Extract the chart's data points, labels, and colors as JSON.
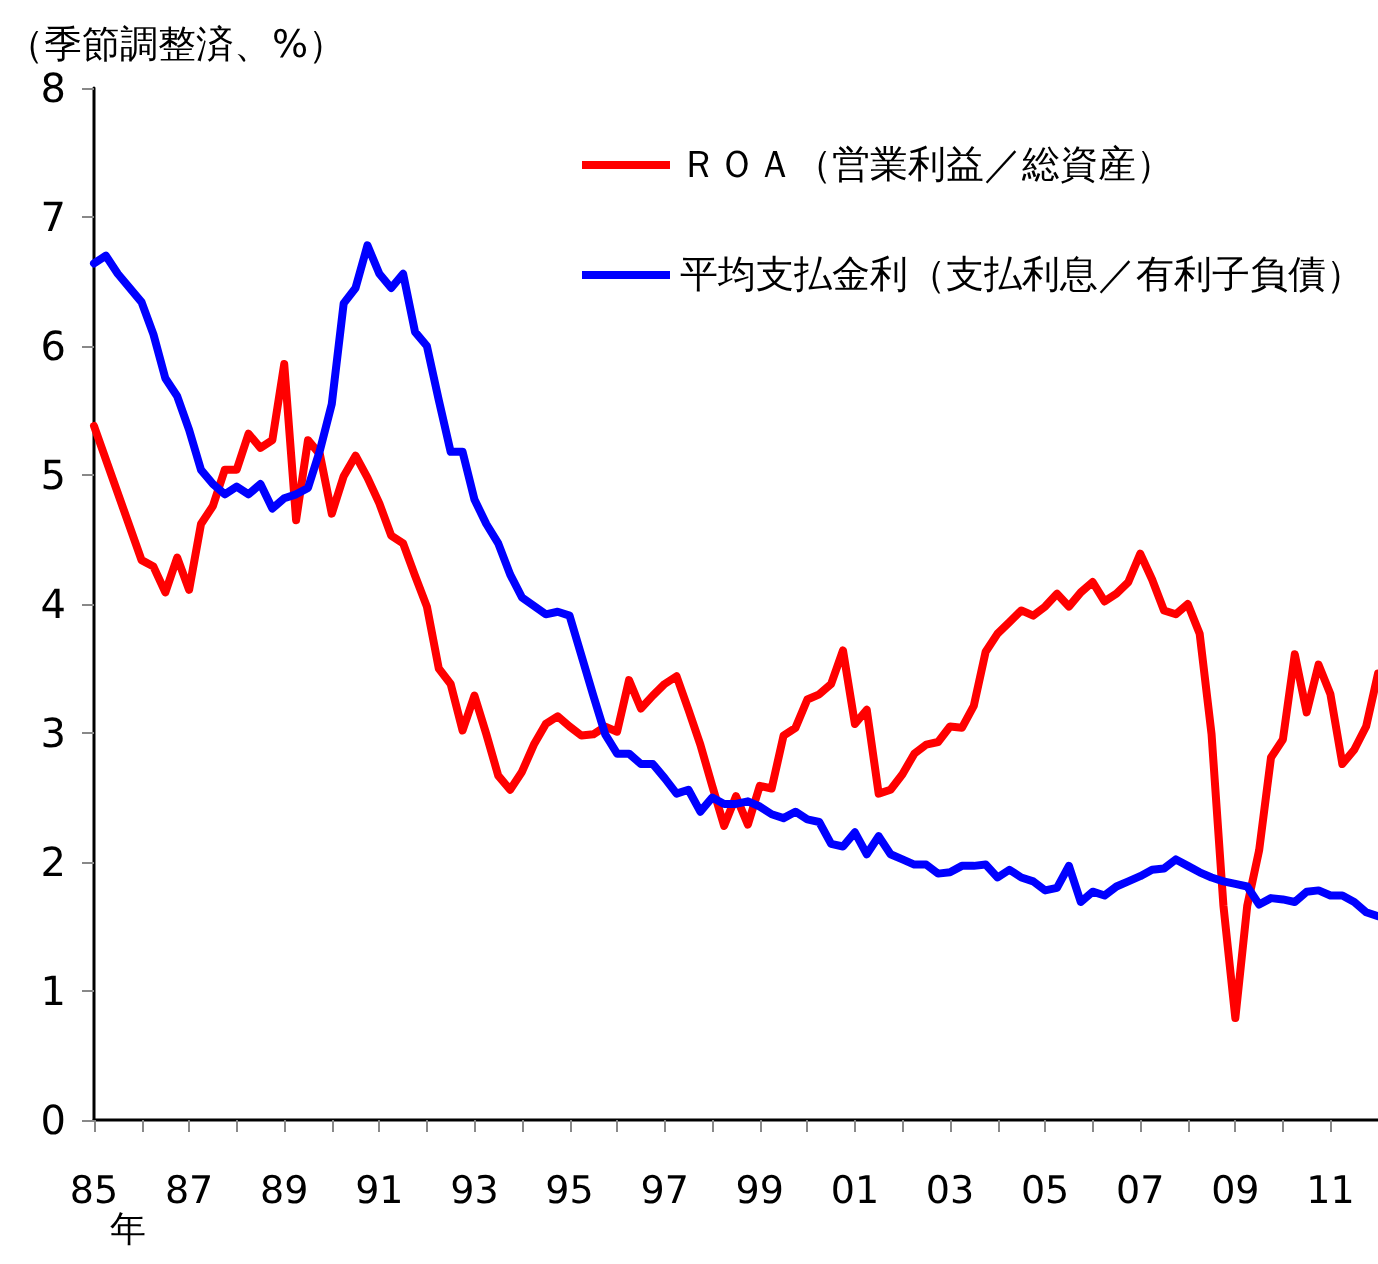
{
  "chart_data": {
    "type": "line",
    "ylabel": "（季節調整済、%）",
    "xlabel": "年",
    "xlim": [
      1985,
      2012
    ],
    "ylim": [
      0,
      8
    ],
    "yticks": [
      0,
      1,
      2,
      3,
      4,
      5,
      6,
      7,
      8
    ],
    "xticks": [
      {
        "value": 1985,
        "label": "85"
      },
      {
        "value": 1986,
        "label": null
      },
      {
        "value": 1987,
        "label": "87"
      },
      {
        "value": 1988,
        "label": null
      },
      {
        "value": 1989,
        "label": "89"
      },
      {
        "value": 1990,
        "label": null
      },
      {
        "value": 1991,
        "label": "91"
      },
      {
        "value": 1992,
        "label": null
      },
      {
        "value": 1993,
        "label": "93"
      },
      {
        "value": 1994,
        "label": null
      },
      {
        "value": 1995,
        "label": "95"
      },
      {
        "value": 1996,
        "label": null
      },
      {
        "value": 1997,
        "label": "97"
      },
      {
        "value": 1998,
        "label": null
      },
      {
        "value": 1999,
        "label": "99"
      },
      {
        "value": 2000,
        "label": null
      },
      {
        "value": 2001,
        "label": "01"
      },
      {
        "value": 2002,
        "label": null
      },
      {
        "value": 2003,
        "label": "03"
      },
      {
        "value": 2004,
        "label": null
      },
      {
        "value": 2005,
        "label": "05"
      },
      {
        "value": 2006,
        "label": null
      },
      {
        "value": 2007,
        "label": "07"
      },
      {
        "value": 2008,
        "label": null
      },
      {
        "value": 2009,
        "label": "09"
      },
      {
        "value": 2010,
        "label": null
      },
      {
        "value": 2011,
        "label": "11"
      }
    ],
    "grid": false,
    "legend": "top right",
    "series": [
      {
        "name": "ＲＯＡ（営業利益／総資産）",
        "color": "#ff0000",
        "x": [
          1985,
          1986,
          1986.25,
          1986.5,
          1986.75,
          1987,
          1987.25,
          1987.5,
          1987.75,
          1988,
          1988.25,
          1988.5,
          1988.75,
          1989,
          1989.25,
          1989.5,
          1989.75,
          1990,
          1990.25,
          1990.5,
          1990.75,
          1991,
          1991.25,
          1991.5,
          1991.75,
          1992,
          1992.25,
          1992.5,
          1992.75,
          1993,
          1993.25,
          1993.5,
          1993.75,
          1994,
          1994.25,
          1994.5,
          1994.75,
          1995,
          1995.25,
          1995.5,
          1995.75,
          1996,
          1996.25,
          1996.5,
          1996.75,
          1997,
          1997.25,
          1997.5,
          1997.75,
          1998,
          1998.25,
          1998.5,
          1998.75,
          1999,
          1999.25,
          1999.5,
          1999.75,
          2000,
          2000.25,
          2000.5,
          2000.75,
          2001,
          2001.25,
          2001.5,
          2001.75,
          2002,
          2002.25,
          2002.5,
          2002.75,
          2003,
          2003.25,
          2003.5,
          2003.75,
          2004,
          2004.25,
          2004.5,
          2004.75,
          2005,
          2005.25,
          2005.5,
          2005.75,
          2006,
          2006.25,
          2006.5,
          2006.75,
          2007,
          2007.25,
          2007.5,
          2007.75,
          2008,
          2008.25,
          2008.5,
          2008.75,
          2009,
          2009.25,
          2009.5,
          2009.75,
          2010,
          2010.25,
          2010.5,
          2010.75,
          2011,
          2011.25,
          2011.5,
          2011.75,
          2012
        ],
        "values": [
          5.38,
          4.34,
          4.29,
          4.09,
          4.36,
          4.11,
          4.62,
          4.76,
          5.04,
          5.04,
          5.32,
          5.21,
          5.27,
          5.86,
          4.65,
          5.27,
          5.16,
          4.7,
          4.99,
          5.15,
          4.98,
          4.78,
          4.53,
          4.47,
          4.22,
          3.98,
          3.5,
          3.38,
          3.02,
          3.29,
          2.99,
          2.67,
          2.56,
          2.7,
          2.91,
          3.07,
          3.13,
          3.05,
          2.98,
          2.99,
          3.05,
          3.01,
          3.41,
          3.19,
          3.29,
          3.38,
          3.44,
          3.18,
          2.91,
          2.59,
          2.28,
          2.51,
          2.29,
          2.59,
          2.57,
          2.98,
          3.04,
          3.26,
          3.3,
          3.38,
          3.64,
          3.07,
          3.18,
          2.53,
          2.56,
          2.68,
          2.84,
          2.91,
          2.93,
          3.05,
          3.04,
          3.21,
          3.63,
          3.77,
          3.86,
          3.95,
          3.91,
          3.98,
          4.08,
          3.98,
          4.09,
          4.17,
          4.02,
          4.08,
          4.17,
          4.39,
          4.19,
          3.95,
          3.92,
          4.0,
          3.77,
          2.99,
          1.66,
          0.79,
          1.66,
          2.09,
          2.81,
          2.95,
          3.61,
          3.16,
          3.53,
          3.3,
          2.76,
          2.87,
          3.05,
          3.46
        ]
      },
      {
        "name": "平均支払金利（支払利息／有利子負債）",
        "color": "#0000ff",
        "x": [
          1985,
          1985.25,
          1985.5,
          1986,
          1986.25,
          1986.5,
          1986.75,
          1987,
          1987.25,
          1987.5,
          1987.75,
          1988,
          1988.25,
          1988.5,
          1988.75,
          1989,
          1989.25,
          1989.5,
          1989.75,
          1990,
          1990.25,
          1990.5,
          1990.75,
          1991,
          1991.25,
          1991.5,
          1991.75,
          1992,
          1992.25,
          1992.5,
          1992.75,
          1993,
          1993.25,
          1993.5,
          1993.75,
          1994,
          1994.5,
          1994.75,
          1995,
          1995.25,
          1995.5,
          1995.75,
          1996,
          1996.25,
          1996.5,
          1996.75,
          1997,
          1997.25,
          1997.5,
          1997.75,
          1998,
          1998.25,
          1998.5,
          1998.75,
          1999,
          1999.25,
          1999.5,
          1999.75,
          2000,
          2000.25,
          2000.5,
          2000.75,
          2001,
          2001.25,
          2001.5,
          2001.75,
          2002,
          2002.25,
          2002.5,
          2002.75,
          2003,
          2003.25,
          2003.5,
          2003.75,
          2004,
          2004.25,
          2004.5,
          2004.75,
          2005,
          2005.25,
          2005.5,
          2005.75,
          2006,
          2006.25,
          2006.5,
          2006.75,
          2007,
          2007.25,
          2007.5,
          2007.75,
          2008,
          2008.25,
          2008.5,
          2008.75,
          2009,
          2009.25,
          2009.5,
          2009.75,
          2010,
          2010.25,
          2010.5,
          2010.75,
          2011,
          2011.25,
          2011.5,
          2011.75,
          2012
        ],
        "values": [
          6.64,
          6.7,
          6.56,
          6.34,
          6.09,
          5.75,
          5.61,
          5.35,
          5.04,
          4.93,
          4.85,
          4.91,
          4.85,
          4.93,
          4.74,
          4.82,
          4.85,
          4.9,
          5.19,
          5.55,
          6.33,
          6.45,
          6.78,
          6.56,
          6.45,
          6.56,
          6.11,
          6.0,
          5.58,
          5.18,
          5.18,
          4.81,
          4.62,
          4.47,
          4.23,
          4.05,
          3.92,
          3.94,
          3.91,
          3.6,
          3.29,
          2.99,
          2.84,
          2.84,
          2.76,
          2.76,
          2.65,
          2.53,
          2.56,
          2.39,
          2.5,
          2.45,
          2.45,
          2.47,
          2.43,
          2.37,
          2.34,
          2.39,
          2.33,
          2.31,
          2.14,
          2.12,
          2.23,
          2.06,
          2.2,
          2.06,
          2.02,
          1.98,
          1.98,
          1.91,
          1.92,
          1.97,
          1.97,
          1.98,
          1.88,
          1.94,
          1.88,
          1.85,
          1.78,
          1.8,
          1.97,
          1.69,
          1.77,
          1.74,
          1.81,
          1.85,
          1.89,
          1.94,
          1.95,
          2.02,
          1.97,
          1.92,
          1.88,
          1.85,
          1.83,
          1.81,
          1.67,
          1.72,
          1.71,
          1.69,
          1.77,
          1.78,
          1.74,
          1.74,
          1.69,
          1.61,
          1.58
        ]
      }
    ]
  }
}
